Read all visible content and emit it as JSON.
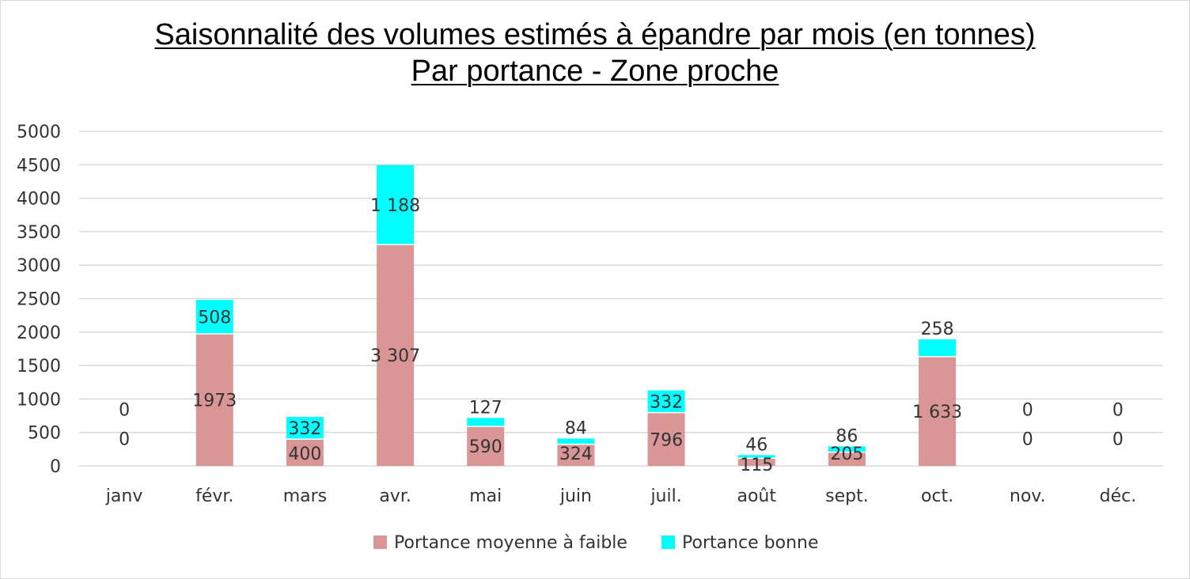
{
  "chart_data": {
    "type": "bar",
    "stacked": true,
    "title": "Saisonnalité des volumes estimés à épandre par mois (en tonnes)",
    "subtitle": "Par portance - Zone proche",
    "categories": [
      "janv",
      "févr.",
      "mars",
      "avr.",
      "mai",
      "juin",
      "juil.",
      "août",
      "sept.",
      "oct.",
      "nov.",
      "déc."
    ],
    "series": [
      {
        "name": "Portance moyenne à faible",
        "color": "#D99694",
        "values": [
          0,
          1973,
          400,
          3307,
          590,
          324,
          796,
          115,
          205,
          1633,
          0,
          0
        ],
        "labels": [
          "0",
          "1973",
          "400",
          "3 307",
          "590",
          "324",
          "796",
          "115",
          "205",
          "1 633",
          "0",
          "0"
        ]
      },
      {
        "name": "Portance bonne",
        "color": "#00FFFF",
        "values": [
          0,
          508,
          332,
          1188,
          127,
          84,
          332,
          46,
          86,
          258,
          0,
          0
        ],
        "labels": [
          "0",
          "508",
          "332",
          "1 188",
          "127",
          "84",
          "332",
          "46",
          "86",
          "258",
          "0",
          "0"
        ]
      }
    ],
    "yticks": [
      "0",
      "500",
      "1000",
      "1500",
      "2000",
      "2500",
      "3000",
      "3500",
      "4000",
      "4500",
      "5000"
    ],
    "ylim": [
      0,
      5000
    ],
    "grid": true,
    "legend_position": "bottom"
  }
}
